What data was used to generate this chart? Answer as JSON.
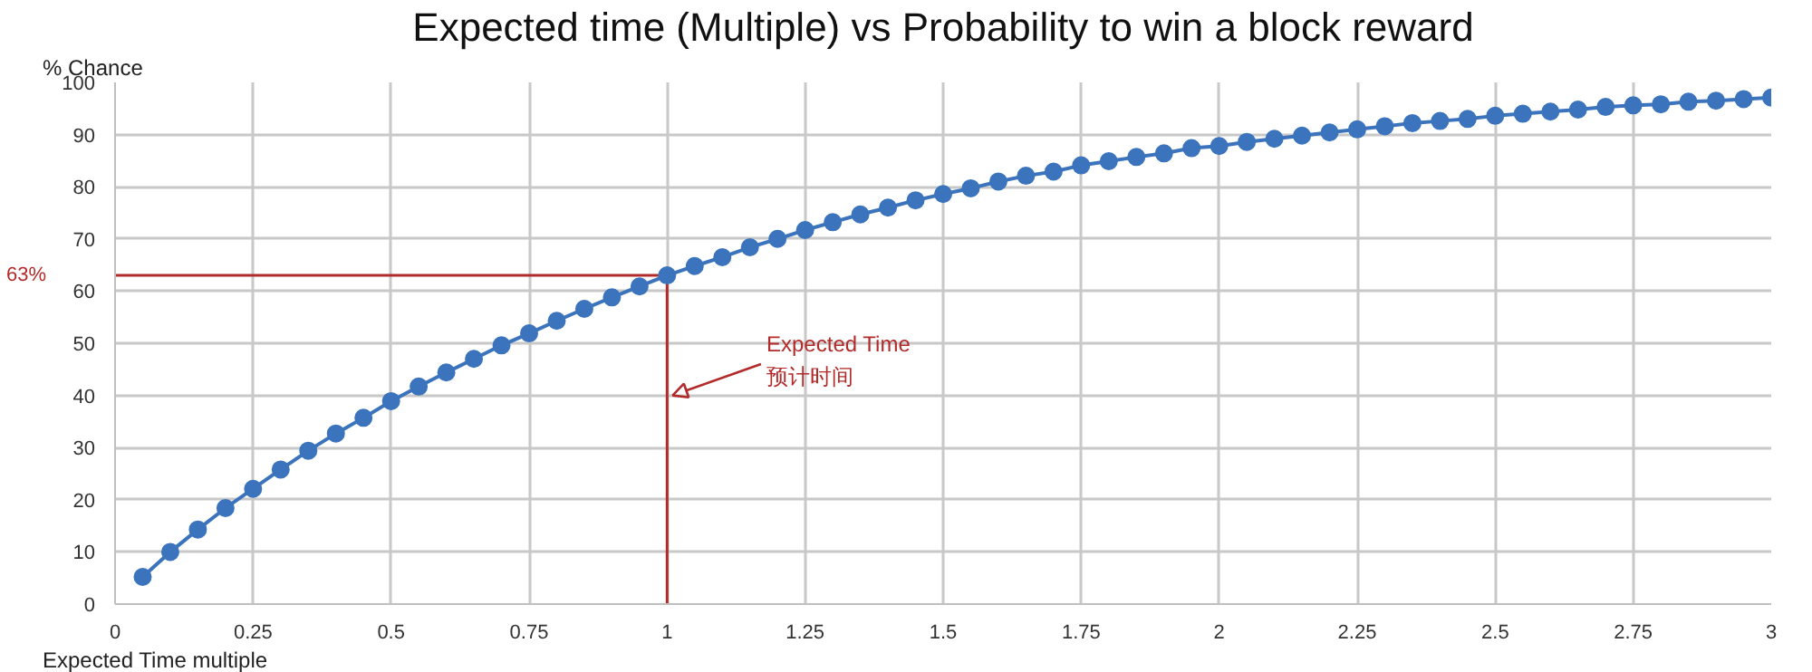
{
  "chart_data": {
    "type": "line",
    "title": "Expected time (Multiple) vs Probability to win a block reward",
    "ylabel": "% Chance",
    "xlabel": "Expected Time multiple",
    "x": [
      0.05,
      0.1,
      0.15,
      0.2,
      0.25,
      0.3,
      0.35,
      0.4,
      0.45,
      0.5,
      0.55,
      0.6,
      0.65,
      0.7,
      0.75,
      0.8,
      0.85,
      0.9,
      0.95,
      1.0,
      1.05,
      1.1,
      1.15,
      1.2,
      1.25,
      1.3,
      1.35,
      1.4,
      1.45,
      1.5,
      1.55,
      1.6,
      1.65,
      1.7,
      1.75,
      1.8,
      1.85,
      1.9,
      1.95,
      2.0,
      2.05,
      2.1,
      2.15,
      2.2,
      2.25,
      2.3,
      2.35,
      2.4,
      2.45,
      2.5,
      2.55,
      2.6,
      2.65,
      2.7,
      2.75,
      2.8,
      2.85,
      2.9,
      2.95,
      3.0
    ],
    "series": [
      {
        "color": "#3b74bd",
        "values": [
          5.2,
          10.0,
          14.3,
          18.4,
          22.1,
          25.8,
          29.4,
          32.7,
          35.7,
          38.9,
          41.7,
          44.4,
          47.0,
          49.6,
          51.9,
          54.3,
          56.6,
          58.8,
          60.9,
          63.0,
          64.8,
          66.5,
          68.4,
          70.0,
          71.7,
          73.2,
          74.7,
          76.0,
          77.4,
          78.6,
          79.7,
          81.0,
          82.1,
          82.9,
          84.1,
          84.9,
          85.7,
          86.4,
          87.4,
          87.8,
          88.6,
          89.2,
          89.8,
          90.4,
          91.0,
          91.6,
          92.2,
          92.6,
          93.0,
          93.6,
          94.0,
          94.4,
          94.8,
          95.3,
          95.6,
          95.8,
          96.3,
          96.5,
          96.8,
          97.1
        ]
      }
    ],
    "xlim": [
      0,
      3
    ],
    "xticks": [
      0,
      0.25,
      0.5,
      0.75,
      1,
      1.25,
      1.5,
      1.75,
      2,
      2.25,
      2.5,
      2.75,
      3
    ],
    "ylim": [
      0,
      100
    ],
    "yticks": [
      0,
      10,
      20,
      30,
      40,
      50,
      60,
      70,
      80,
      90,
      100
    ],
    "grid": true,
    "marker": "circle",
    "line_style": "solid",
    "ref_lines": [
      {
        "axis": "y",
        "value": 63,
        "label": "63%",
        "color": "#b22a2a"
      },
      {
        "axis": "x",
        "value": 1,
        "color": "#b22a2a"
      }
    ],
    "annotations": [
      {
        "text": "Expected Time",
        "x": 1,
        "y": 40
      },
      {
        "text": "预计时间",
        "x": 1,
        "y": 40
      }
    ]
  }
}
